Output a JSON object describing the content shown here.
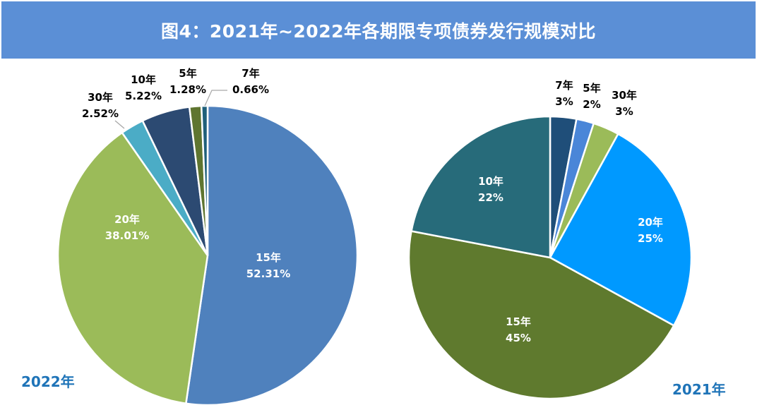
{
  "title": "图4：2021年~2022年各期限专项债券发行规模对比",
  "colors": {
    "title_bg": "#5b8fd6",
    "year_label": "#1f74b8"
  },
  "chart_data": [
    {
      "type": "pie",
      "name": "2022年",
      "caption": "2022年",
      "slices": [
        {
          "category": "15年",
          "value": 52.31,
          "value_label": "52.31%",
          "color": "#4f81bd",
          "label_inside": true
        },
        {
          "category": "20年",
          "value": 38.01,
          "value_label": "38.01%",
          "color": "#9bbb59",
          "label_inside": true
        },
        {
          "category": "30年",
          "value": 2.52,
          "value_label": "2.52%",
          "color": "#4bacc6",
          "label_inside": false
        },
        {
          "category": "10年",
          "value": 5.22,
          "value_label": "5.22%",
          "color": "#2c4a72",
          "label_inside": false
        },
        {
          "category": "5年",
          "value": 1.28,
          "value_label": "1.28%",
          "color": "#5f7530",
          "label_inside": false
        },
        {
          "category": "7年",
          "value": 0.66,
          "value_label": "0.66%",
          "color": "#1f5f7a",
          "label_inside": false
        }
      ]
    },
    {
      "type": "pie",
      "name": "2021年",
      "caption": "2021年",
      "slices": [
        {
          "category": "7年",
          "value": 3,
          "value_label": "3%",
          "color": "#1f4e79",
          "label_inside": false
        },
        {
          "category": "5年",
          "value": 2,
          "value_label": "2%",
          "color": "#4a86d8",
          "label_inside": false
        },
        {
          "category": "30年",
          "value": 3,
          "value_label": "3%",
          "color": "#9bbb59",
          "label_inside": false
        },
        {
          "category": "20年",
          "value": 25,
          "value_label": "25%",
          "color": "#0099ff",
          "label_inside": true
        },
        {
          "category": "15年",
          "value": 45,
          "value_label": "45%",
          "color": "#5f7a2e",
          "label_inside": true
        },
        {
          "category": "10年",
          "value": 22,
          "value_label": "22%",
          "color": "#276b7a",
          "label_inside": true
        }
      ]
    }
  ]
}
